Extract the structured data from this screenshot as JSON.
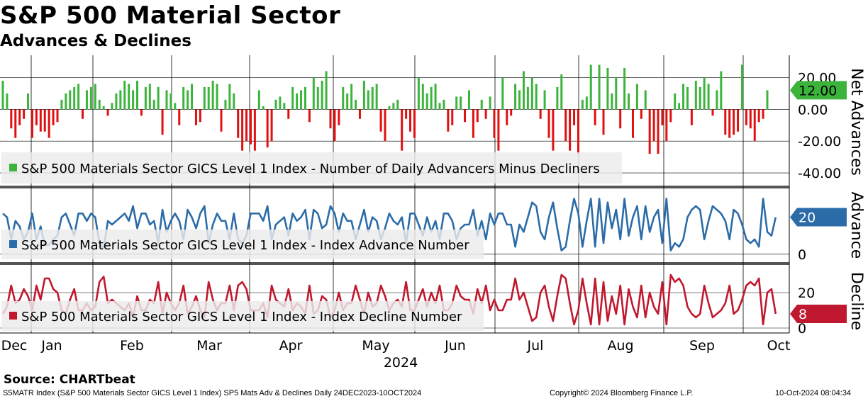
{
  "header": {
    "title": "S&P 500 Material Sector",
    "subtitle": "Advances & Declines"
  },
  "source": "Source: CHARTbeat",
  "footer": {
    "left": "S5MATR Index (S&P 500 Materials Sector GICS Level 1 Index) SP5 Mats Adv & Declines  Daily 24DEC2023-10OCT2024",
    "center": "Copyright© 2024 Bloomberg Finance L.P.",
    "right": "10-Oct-2024 08:04:34"
  },
  "colors": {
    "positive": "#3cb43c",
    "negative": "#e01010",
    "advance": "#2b6ca8",
    "advance_light": "#8fb3d6",
    "decline": "#c0182e",
    "decline_light": "#e8a0a8",
    "grid": "#000000",
    "legend_bg": "#ececec"
  },
  "chart_data": [
    {
      "type": "bar",
      "name": "net-advances",
      "legend": "S&P 500 Materials Sector GICS Level 1 Index - Number of Daily Advancers Minus Decliners",
      "axis_label": "Net Advances",
      "ylim": [
        -48,
        34
      ],
      "yticks": [
        20,
        0,
        -20,
        -40
      ],
      "ytick_labels": [
        "20.00",
        "0.00",
        "-20.00",
        "-40.00"
      ],
      "last_value_label": "12.00",
      "values": [
        18,
        10,
        -12,
        -18,
        -10,
        -6,
        10,
        -18,
        -10,
        -14,
        -14,
        -18,
        -10,
        -8,
        6,
        10,
        12,
        14,
        16,
        -6,
        12,
        14,
        16,
        6,
        2,
        -4,
        4,
        10,
        12,
        18,
        16,
        12,
        18,
        -4,
        14,
        16,
        6,
        14,
        -16,
        12,
        10,
        4,
        -10,
        14,
        12,
        16,
        -10,
        -8,
        14,
        14,
        18,
        16,
        -14,
        6,
        16,
        10,
        -18,
        -26,
        -20,
        -22,
        -26,
        12,
        2,
        -24,
        -20,
        6,
        8,
        4,
        -6,
        14,
        10,
        12,
        14,
        -8,
        20,
        14,
        18,
        24,
        -12,
        -20,
        -10,
        14,
        10,
        16,
        6,
        -6,
        18,
        12,
        14,
        16,
        -14,
        -20,
        2,
        4,
        6,
        -26,
        -6,
        -14,
        -18,
        20,
        16,
        10,
        14,
        16,
        4,
        6,
        -14,
        -10,
        8,
        8,
        -8,
        12,
        -18,
        -8,
        6,
        -6,
        8,
        -18,
        -26,
        20,
        -10,
        -4,
        16,
        12,
        24,
        14,
        20,
        16,
        -6,
        12,
        -18,
        -26,
        14,
        22,
        -20,
        -26,
        -10,
        -28,
        6,
        8,
        28,
        -10,
        28,
        -16,
        26,
        10,
        20,
        -12,
        26,
        10,
        -18,
        16,
        -6,
        12,
        -28,
        -20,
        -28,
        -10,
        -20,
        -8,
        10,
        4,
        16,
        14,
        -10,
        18,
        14,
        20,
        16,
        -4,
        12,
        24,
        -16,
        -18,
        -16,
        -14,
        28,
        -10,
        -12,
        -20,
        -8,
        -6,
        12
      ]
    },
    {
      "type": "line",
      "name": "advance-number",
      "legend": "S&P 500 Materials Sector GICS Level 1 Index - Index Advance Number",
      "axis_label": "Advance",
      "ylim": [
        -2,
        34
      ],
      "yticks": [
        0
      ],
      "ytick_labels": [
        "0"
      ],
      "last_value_label": "20",
      "values": [
        22,
        20,
        8,
        18,
        15,
        8,
        12,
        22,
        8,
        15,
        5,
        5,
        8,
        10,
        20,
        22,
        16,
        10,
        22,
        22,
        18,
        22,
        20,
        6,
        3,
        18,
        16,
        18,
        20,
        22,
        18,
        26,
        14,
        22,
        22,
        16,
        18,
        6,
        24,
        12,
        18,
        22,
        18,
        8,
        24,
        20,
        14,
        22,
        26,
        6,
        16,
        22,
        18,
        18,
        8,
        22,
        8,
        6,
        10,
        22,
        22,
        22,
        18,
        26,
        8,
        16,
        18,
        20,
        10,
        22,
        18,
        20,
        24,
        8,
        24,
        22,
        14,
        16,
        26,
        22,
        12,
        22,
        18,
        18,
        8,
        16,
        24,
        12,
        20,
        18,
        8,
        14,
        22,
        18,
        16,
        20,
        6,
        22,
        22,
        16,
        10,
        20,
        12,
        18,
        8,
        22,
        22,
        18,
        8,
        14,
        16,
        16,
        24,
        10,
        18,
        8,
        22,
        16,
        22,
        22,
        16,
        16,
        4,
        16,
        12,
        20,
        28,
        26,
        12,
        8,
        20,
        28,
        14,
        2,
        4,
        18,
        30,
        22,
        4,
        18,
        30,
        4,
        30,
        6,
        28,
        14,
        24,
        8,
        30,
        10,
        20,
        26,
        8,
        26,
        12,
        20,
        24,
        6,
        30,
        2,
        6,
        4,
        8,
        20,
        24,
        26,
        24,
        8,
        18,
        26,
        24,
        22,
        18,
        8,
        24,
        22,
        16,
        8,
        6,
        8,
        4,
        30,
        12,
        10,
        20
      ]
    },
    {
      "type": "line",
      "name": "decline-number",
      "legend": "S&P 500 Materials Sector GICS Level 1 Index - Index Decline Number",
      "axis_label": "Decline",
      "ylim": [
        -2,
        34
      ],
      "yticks": [
        20,
        0
      ],
      "ytick_labels": [
        "20",
        "0"
      ],
      "last_value_label": "8",
      "values": [
        8,
        12,
        24,
        14,
        16,
        22,
        18,
        10,
        24,
        16,
        28,
        28,
        22,
        20,
        10,
        8,
        16,
        22,
        10,
        10,
        14,
        10,
        12,
        26,
        29,
        14,
        16,
        14,
        12,
        10,
        14,
        6,
        18,
        10,
        10,
        16,
        14,
        26,
        8,
        20,
        14,
        10,
        14,
        24,
        8,
        12,
        18,
        10,
        6,
        26,
        16,
        10,
        14,
        14,
        24,
        10,
        24,
        26,
        22,
        10,
        10,
        10,
        14,
        6,
        24,
        16,
        14,
        12,
        22,
        10,
        14,
        12,
        8,
        24,
        8,
        10,
        18,
        16,
        6,
        10,
        20,
        10,
        14,
        14,
        24,
        16,
        8,
        20,
        12,
        14,
        24,
        18,
        10,
        14,
        16,
        12,
        26,
        10,
        10,
        16,
        22,
        12,
        20,
        14,
        24,
        10,
        10,
        14,
        24,
        18,
        16,
        16,
        8,
        22,
        14,
        24,
        10,
        16,
        10,
        10,
        16,
        16,
        28,
        16,
        20,
        12,
        4,
        6,
        20,
        24,
        12,
        4,
        18,
        30,
        28,
        14,
        2,
        10,
        28,
        14,
        2,
        28,
        2,
        26,
        4,
        18,
        8,
        24,
        2,
        22,
        12,
        6,
        24,
        6,
        20,
        12,
        8,
        26,
        2,
        30,
        26,
        28,
        24,
        12,
        8,
        6,
        8,
        24,
        14,
        6,
        8,
        10,
        14,
        24,
        8,
        10,
        16,
        24,
        26,
        24,
        28,
        2,
        20,
        22,
        8
      ]
    }
  ],
  "x_axis": {
    "month_labels": [
      "Dec",
      "Jan",
      "Feb",
      "Mar",
      "Apr",
      "May",
      "Jun",
      "Jul",
      "Aug",
      "Sep",
      "Oct"
    ],
    "year_label": "2024"
  }
}
